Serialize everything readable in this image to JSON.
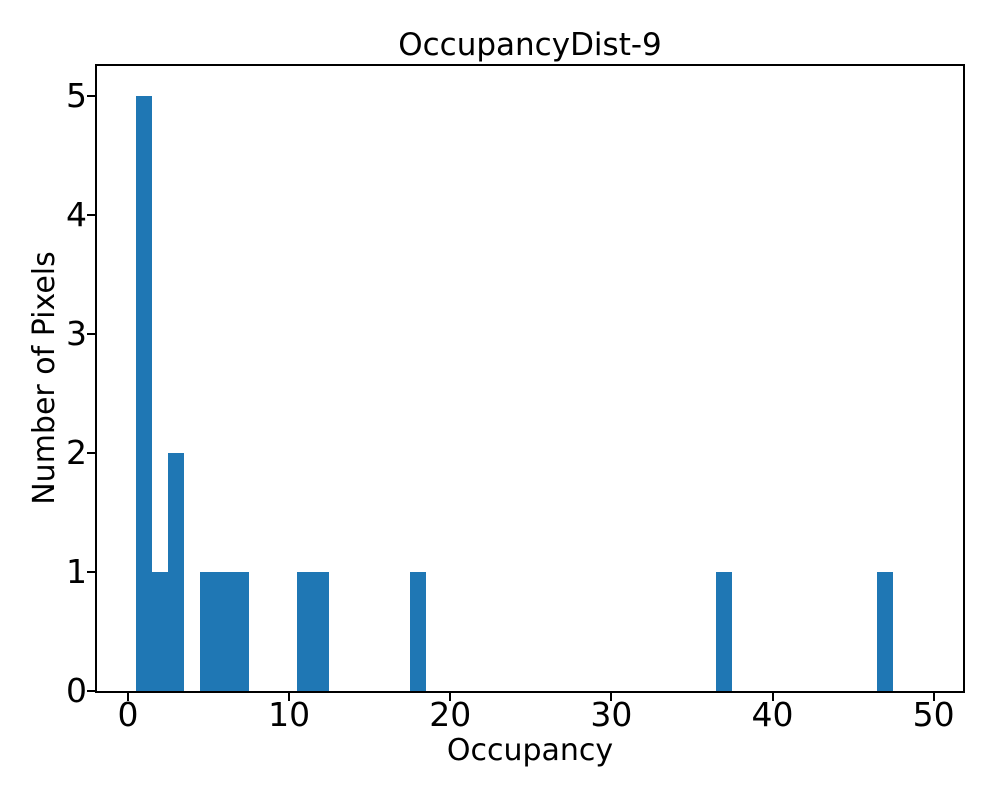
{
  "figure": {
    "background_color": "#ffffff",
    "axes_line_color": "#000000",
    "text_color": "#000000"
  },
  "chart_data": {
    "type": "bar",
    "subtype": "histogram",
    "title": "OccupancyDist-9",
    "xlabel": "Occupancy",
    "ylabel": "Number of Pixels",
    "bar_color": "#1f77b4",
    "bin_width": 1,
    "bars": [
      {
        "x": 1,
        "count": 5
      },
      {
        "x": 2,
        "count": 1
      },
      {
        "x": 3,
        "count": 2
      },
      {
        "x": 5,
        "count": 1
      },
      {
        "x": 6,
        "count": 1
      },
      {
        "x": 7,
        "count": 1
      },
      {
        "x": 11,
        "count": 1
      },
      {
        "x": 12,
        "count": 1
      },
      {
        "x": 18,
        "count": 1
      },
      {
        "x": 37,
        "count": 1
      },
      {
        "x": 47,
        "count": 1
      }
    ],
    "x_ticks": [
      0,
      10,
      20,
      30,
      40,
      50
    ],
    "y_ticks": [
      0,
      1,
      2,
      3,
      4,
      5
    ],
    "xlim": [
      -1.92,
      51.82
    ],
    "ylim": [
      0,
      5.25
    ],
    "grid": false
  }
}
